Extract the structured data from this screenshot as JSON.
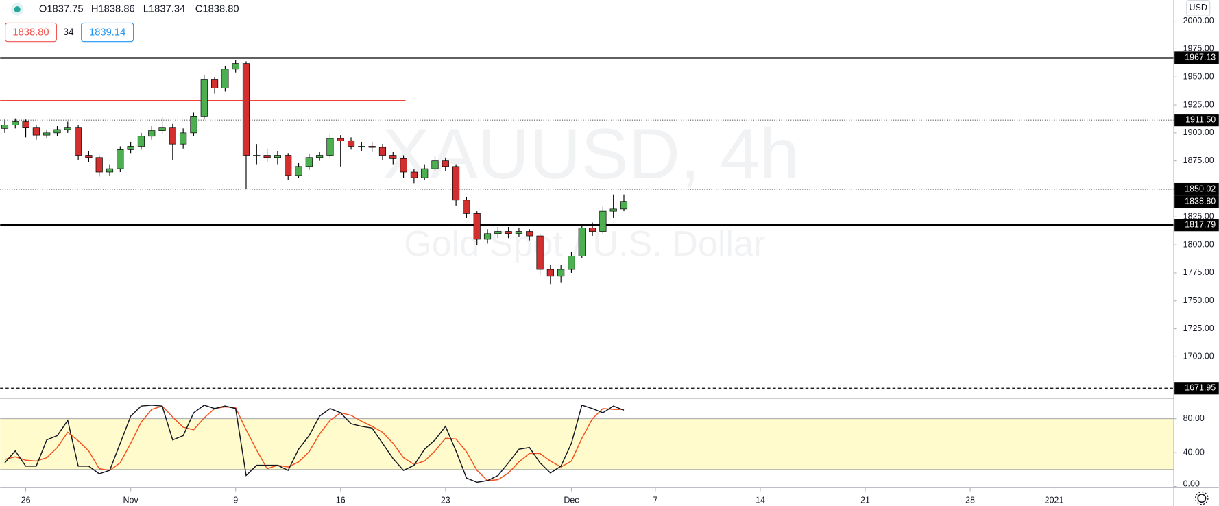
{
  "header": {
    "ohlc": [
      "O1837.75",
      "H1838.86",
      "L1837.34",
      "C1838.80"
    ],
    "bid": "1838.80",
    "spread": "34",
    "ask": "1839.14",
    "currency": "USD"
  },
  "watermark": {
    "symbol": "XAUUSD, 4h",
    "description": "Gold Spot / U.S. Dollar"
  },
  "chart_data": [
    {
      "type": "candlestick",
      "up_color": "#4caf50",
      "down_color": "#d32f2f",
      "x": [
        -1,
        -0.5,
        0,
        0.5,
        1,
        1.5,
        2,
        2.5,
        3,
        3.5,
        4,
        4.5,
        5,
        5.5,
        6,
        6.5,
        7,
        7.5,
        8,
        8.5,
        9,
        9.5,
        10,
        10.5,
        11,
        11.5,
        12,
        12.5,
        13,
        13.5,
        14,
        14.5,
        15,
        15.5,
        16,
        16.5,
        17,
        17.5,
        18,
        18.5,
        19,
        19.5,
        20,
        20.5,
        21,
        21.5,
        22,
        22.5,
        23,
        23.5,
        24,
        24.5,
        25,
        25.5,
        26,
        26.5,
        27,
        27.5,
        28,
        28.5
      ],
      "open": [
        1904,
        1907,
        1910,
        1905,
        1898,
        1900,
        1903,
        1905,
        1880,
        1878,
        1865,
        1868,
        1885,
        1888,
        1897,
        1902,
        1905,
        1890,
        1900,
        1915,
        1948,
        1940,
        1957,
        1962,
        1880,
        1880,
        1878,
        1880,
        1862,
        1870,
        1878,
        1880,
        1895,
        1893,
        1888,
        1888,
        1887,
        1880,
        1877,
        1865,
        1860,
        1868,
        1875,
        1870,
        1840,
        1828,
        1805,
        1810,
        1812,
        1810,
        1812,
        1808,
        1778,
        1772,
        1778,
        1790,
        1815,
        1812,
        1830,
        1832
      ],
      "high": [
        1912,
        1913,
        1912,
        1907,
        1903,
        1906,
        1910,
        1907,
        1884,
        1880,
        1872,
        1888,
        1892,
        1900,
        1906,
        1914,
        1908,
        1904,
        1918,
        1952,
        1950,
        1960,
        1965,
        1964,
        1890,
        1886,
        1884,
        1882,
        1873,
        1881,
        1883,
        1899,
        1898,
        1896,
        1892,
        1892,
        1890,
        1883,
        1880,
        1868,
        1872,
        1879,
        1878,
        1872,
        1843,
        1830,
        1814,
        1816,
        1816,
        1815,
        1814,
        1810,
        1782,
        1782,
        1794,
        1818,
        1820,
        1834,
        1845,
        1845
      ],
      "low": [
        1900,
        1904,
        1896,
        1894,
        1895,
        1897,
        1900,
        1876,
        1874,
        1861,
        1862,
        1865,
        1882,
        1885,
        1894,
        1899,
        1876,
        1886,
        1897,
        1912,
        1935,
        1937,
        1954,
        1850,
        1872,
        1874,
        1872,
        1858,
        1860,
        1867,
        1875,
        1877,
        1870,
        1885,
        1884,
        1883,
        1876,
        1872,
        1860,
        1855,
        1858,
        1866,
        1866,
        1835,
        1824,
        1800,
        1801,
        1806,
        1806,
        1807,
        1804,
        1773,
        1765,
        1766,
        1775,
        1788,
        1808,
        1810,
        1824,
        1830
      ],
      "close": [
        1907,
        1910,
        1905,
        1898,
        1900,
        1903,
        1905,
        1880,
        1878,
        1865,
        1868,
        1885,
        1888,
        1897,
        1902,
        1905,
        1890,
        1900,
        1915,
        1948,
        1940,
        1957,
        1962,
        1880,
        1880,
        1878,
        1880,
        1862,
        1870,
        1878,
        1880,
        1895,
        1893,
        1888,
        1888,
        1887,
        1880,
        1877,
        1865,
        1860,
        1868,
        1875,
        1870,
        1840,
        1828,
        1805,
        1810,
        1812,
        1810,
        1812,
        1808,
        1778,
        1772,
        1778,
        1790,
        1815,
        1812,
        1830,
        1832,
        1838.8
      ],
      "xlim": [
        -1.22,
        54.7
      ],
      "ylim": [
        1664.6,
        2018.75
      ],
      "yticks": [
        {
          "value": 1700,
          "label": "1700.00"
        },
        {
          "value": 1725,
          "label": "1725.00"
        },
        {
          "value": 1750,
          "label": "1750.00"
        },
        {
          "value": 1775,
          "label": "1775.00"
        },
        {
          "value": 1800,
          "label": "1800.00"
        },
        {
          "value": 1825,
          "label": "1825.00"
        },
        {
          "value": 1850,
          "label": "1850.00"
        },
        {
          "value": 1875,
          "label": "1875.00"
        },
        {
          "value": 1900,
          "label": "1900.00"
        },
        {
          "value": 1925,
          "label": "1925.00"
        },
        {
          "value": 1950,
          "label": "1950.00"
        },
        {
          "value": 1975,
          "label": "1975.00"
        },
        {
          "value": 2000,
          "label": "2000.00"
        }
      ],
      "levels": [
        {
          "value": 1967.13,
          "label": "1967.13",
          "style": "solid"
        },
        {
          "value": 1911.5,
          "label": "1911.50",
          "style": "dotted"
        },
        {
          "value": 1850.02,
          "label": "1850.02",
          "style": "dotted"
        },
        {
          "value": 1817.79,
          "label": "1817.79",
          "style": "solid"
        },
        {
          "value": 1671.95,
          "label": "1671.95",
          "style": "dashed"
        }
      ],
      "segment": {
        "value": 1929,
        "x": [
          -1.22,
          18.1
        ],
        "color": "#f44336"
      },
      "last_price": {
        "value": 1838.8,
        "label": "1838.80"
      }
    },
    {
      "type": "line",
      "x": [
        -1,
        -0.5,
        0,
        0.5,
        1,
        1.5,
        2,
        2.5,
        3,
        3.5,
        4,
        4.5,
        5,
        5.5,
        6,
        6.5,
        7,
        7.5,
        8,
        8.5,
        9,
        9.5,
        10,
        10.5,
        11,
        11.5,
        12,
        12.5,
        13,
        13.5,
        14,
        14.5,
        15,
        15.5,
        16,
        16.5,
        17,
        17.5,
        18,
        18.5,
        19,
        19.5,
        20,
        20.5,
        21,
        21.5,
        22,
        22.5,
        23,
        23.5,
        24,
        24.5,
        25,
        25.5,
        26,
        26.5,
        27,
        27.5,
        28,
        28.5
      ],
      "series": [
        {
          "color": "#131722",
          "values": [
            28,
            42,
            24,
            24,
            55,
            60,
            78,
            24,
            24,
            15,
            19,
            51,
            83,
            95,
            96,
            95,
            55,
            60,
            87,
            96,
            92,
            95,
            92,
            13,
            25,
            25,
            25,
            19,
            44,
            60,
            83,
            92,
            87,
            74,
            71,
            69,
            51,
            33,
            19,
            25,
            44,
            55,
            71,
            42,
            10,
            5,
            7,
            13,
            28,
            44,
            46,
            28,
            16,
            24,
            51,
            96,
            92,
            87,
            95,
            90
          ]
        },
        {
          "color": "#f4511e",
          "values": [
            32,
            35,
            31,
            30,
            34,
            46,
            64,
            54,
            42,
            21,
            19,
            28,
            51,
            76,
            91,
            95,
            82,
            70,
            67,
            81,
            92,
            94,
            93,
            67,
            43,
            21,
            25,
            23,
            29,
            41,
            62,
            78,
            87,
            84,
            77,
            71,
            64,
            51,
            34,
            26,
            30,
            42,
            57,
            56,
            41,
            19,
            7,
            8,
            16,
            29,
            39,
            39,
            30,
            23,
            30,
            57,
            80,
            92,
            91,
            91
          ]
        }
      ],
      "band": [
        20,
        80
      ],
      "band_color": "#fffbcc",
      "xlim": [
        -1.22,
        54.7
      ],
      "ylim": [
        -1,
        103.6
      ],
      "yticks": [
        {
          "value": 0,
          "label": "0.00"
        },
        {
          "value": 40,
          "label": "40.00"
        },
        {
          "value": 80,
          "label": "80.00"
        }
      ],
      "xticks": [
        {
          "value": 0,
          "label": "26"
        },
        {
          "value": 5,
          "label": "Nov"
        },
        {
          "value": 10,
          "label": "9"
        },
        {
          "value": 15,
          "label": "16"
        },
        {
          "value": 20,
          "label": "23"
        },
        {
          "value": 26,
          "label": "Dec"
        },
        {
          "value": 30,
          "label": "7"
        },
        {
          "value": 35,
          "label": "14"
        },
        {
          "value": 40,
          "label": "21"
        },
        {
          "value": 45,
          "label": "28"
        },
        {
          "value": 49,
          "label": "2021"
        }
      ]
    }
  ]
}
